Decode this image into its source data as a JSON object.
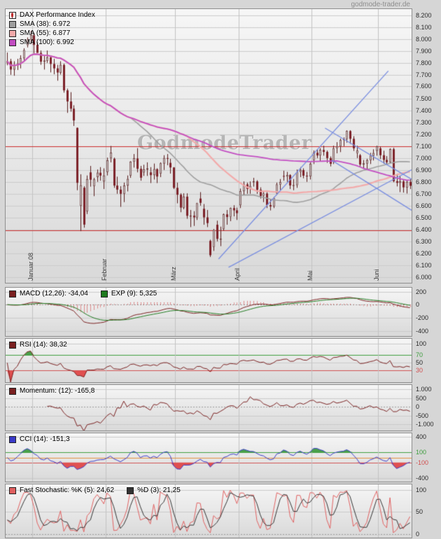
{
  "site": {
    "brand_watermark": "GodmodeTrader",
    "source_label": "godmode-trader.de"
  },
  "legends": {
    "main": [
      {
        "label": "DAX Performance Index"
      },
      {
        "label": "SMA (38): 6.972",
        "swatch": "#9f9f9f"
      },
      {
        "label": "SMA (55): 6.877",
        "swatch": "#f2aaaa"
      },
      {
        "label": "SMA (100): 6.992",
        "swatch": "#c24ec2"
      }
    ],
    "macd": [
      {
        "label": "MACD (12,26): -34,04",
        "swatch": "#7a2020"
      },
      {
        "label": "EXP (9): 5,325",
        "swatch": "#1f7a1f"
      }
    ],
    "rsi": [
      {
        "label": "RSI (14): 38,32",
        "swatch": "#7a2020"
      }
    ],
    "momentum": [
      {
        "label": "Momentum: (12): -165,8",
        "swatch": "#7a2020"
      }
    ],
    "cci": [
      {
        "label": "CCI (14): -151,3",
        "swatch": "#3a3ac8"
      }
    ],
    "stochastic": [
      {
        "label": "Fast Stochastic: %K (5): 24,62",
        "swatch": "#e06060"
      },
      {
        "label": "%D (3): 21,25",
        "swatch": "#333333"
      }
    ]
  },
  "chart_data": [
    {
      "type": "candlestick",
      "title": "DAX Performance Index",
      "ylim": [
        5950,
        8250
      ],
      "y_axis": {
        "min": 6000,
        "max": 8200,
        "step": 100
      },
      "x_months": [
        {
          "label": "Januar 08",
          "index": 8
        },
        {
          "label": "Februar",
          "index": 30
        },
        {
          "label": "März",
          "index": 51
        },
        {
          "label": "April",
          "index": 70
        },
        {
          "label": "Mai",
          "index": 92
        },
        {
          "label": "Juni",
          "index": 112
        }
      ],
      "series": {
        "candles": [
          [
            7800,
            7885,
            7778,
            7812
          ],
          [
            7812,
            7832,
            7698,
            7742
          ],
          [
            7742,
            7812,
            7690,
            7776
          ],
          [
            7776,
            7832,
            7738,
            7791
          ],
          [
            7791,
            7862,
            7752,
            7837
          ],
          [
            7837,
            7921,
            7820,
            7905
          ],
          [
            7948,
            8012,
            7928,
            7994
          ],
          [
            7994,
            8068,
            7958,
            8030
          ],
          [
            8030,
            8050,
            7868,
            7949
          ],
          [
            7949,
            7972,
            7898,
            7882
          ],
          [
            7882,
            7902,
            7782,
            7808
          ],
          [
            7808,
            7862,
            7742,
            7817
          ],
          [
            7817,
            7902,
            7798,
            7845
          ],
          [
            7845,
            7862,
            7718,
            7789
          ],
          [
            7789,
            7832,
            7702,
            7752
          ],
          [
            7752,
            7782,
            7648,
            7717
          ],
          [
            7717,
            7812,
            7700,
            7781
          ],
          [
            7781,
            7792,
            7548,
            7567
          ],
          [
            7567,
            7582,
            7378,
            7474
          ],
          [
            7474,
            7552,
            7388,
            7413
          ],
          [
            7413,
            7442,
            7268,
            7314
          ],
          [
            7252,
            7255,
            6728,
            6790
          ],
          [
            6598,
            6862,
            6384,
            6769
          ],
          [
            6749,
            6762,
            6413,
            6439
          ],
          [
            6552,
            6852,
            6528,
            6821
          ],
          [
            6878,
            6932,
            6758,
            6816
          ],
          [
            6762,
            6832,
            6678,
            6818
          ],
          [
            6838,
            6902,
            6798,
            6875
          ],
          [
            6875,
            6922,
            6808,
            6851
          ],
          [
            6802,
            6912,
            6738,
            6851
          ],
          [
            6882,
            7002,
            6852,
            6979
          ],
          [
            7000,
            7100,
            6962,
            7043
          ],
          [
            6992,
            7002,
            6748,
            6767
          ],
          [
            6767,
            6842,
            6698,
            6733
          ],
          [
            6733,
            6762,
            6588,
            6698
          ],
          [
            6698,
            6792,
            6628,
            6767
          ],
          [
            6767,
            6852,
            6718,
            6822
          ],
          [
            6852,
            6972,
            6832,
            6968
          ],
          [
            6968,
            7032,
            6918,
            6995
          ],
          [
            6995,
            7082,
            6878,
            6908
          ],
          [
            6908,
            6932,
            6808,
            6833
          ],
          [
            6878,
            6942,
            6848,
            6903
          ],
          [
            6903,
            6962,
            6848,
            6910
          ],
          [
            6878,
            6922,
            6788,
            6855
          ],
          [
            6855,
            6952,
            6818,
            6905
          ],
          [
            6905,
            6912,
            6788,
            6843
          ],
          [
            6868,
            6962,
            6838,
            6953
          ],
          [
            6953,
            7022,
            6898,
            6998
          ],
          [
            6998,
            7032,
            6938,
            6997
          ],
          [
            6958,
            6992,
            6868,
            6919
          ],
          [
            6919,
            6922,
            6738,
            6748
          ],
          [
            6748,
            6792,
            6618,
            6690
          ],
          [
            6690,
            6702,
            6543,
            6582
          ],
          [
            6582,
            6702,
            6568,
            6674
          ],
          [
            6674,
            6702,
            6488,
            6513
          ],
          [
            6513,
            6562,
            6418,
            6514
          ],
          [
            6514,
            6552,
            6428,
            6500
          ],
          [
            6500,
            6622,
            6478,
            6618
          ],
          [
            6658,
            6712,
            6598,
            6622
          ],
          [
            6572,
            6612,
            6438,
            6500
          ],
          [
            6500,
            6562,
            6418,
            6452
          ],
          [
            6302,
            6312,
            6167,
            6182
          ],
          [
            6252,
            6402,
            6218,
            6393
          ],
          [
            6438,
            6472,
            6298,
            6319
          ],
          [
            6319,
            6422,
            6258,
            6320
          ],
          [
            6402,
            6532,
            6388,
            6525
          ],
          [
            6525,
            6562,
            6438,
            6503
          ],
          [
            6503,
            6582,
            6468,
            6578
          ],
          [
            6578,
            6602,
            6508,
            6559
          ],
          [
            6559,
            6582,
            6478,
            6535
          ],
          [
            6602,
            6742,
            6578,
            6720
          ],
          [
            6720,
            6802,
            6688,
            6777
          ],
          [
            6777,
            6792,
            6698,
            6739
          ],
          [
            6739,
            6802,
            6698,
            6763
          ],
          [
            6800,
            6832,
            6758,
            6802
          ],
          [
            6802,
            6812,
            6698,
            6732
          ],
          [
            6732,
            6752,
            6658,
            6680
          ],
          [
            6680,
            6722,
            6628,
            6700
          ],
          [
            6700,
            6712,
            6578,
            6603
          ],
          [
            6603,
            6652,
            6558,
            6591
          ],
          [
            6591,
            6672,
            6578,
            6662
          ],
          [
            6702,
            6792,
            6688,
            6776
          ],
          [
            6776,
            6822,
            6728,
            6795
          ],
          [
            6848,
            6892,
            6808,
            6843
          ],
          [
            6843,
            6882,
            6798,
            6855
          ],
          [
            6855,
            6862,
            6738,
            6768
          ],
          [
            6768,
            6822,
            6728,
            6771
          ],
          [
            6771,
            6902,
            6748,
            6880
          ],
          [
            6880,
            6922,
            6838,
            6897
          ],
          [
            6897,
            6912,
            6828,
            6850
          ],
          [
            6850,
            6882,
            6798,
            6844
          ],
          [
            6844,
            6962,
            6818,
            6948
          ],
          [
            6982,
            7062,
            6948,
            7043
          ],
          [
            7043,
            7072,
            6998,
            7020
          ],
          [
            7020,
            7082,
            6968,
            7066
          ],
          [
            7066,
            7102,
            7018,
            7050
          ],
          [
            7050,
            7062,
            6958,
            6998
          ],
          [
            6998,
            7012,
            6928,
            6950
          ],
          [
            6972,
            7102,
            6948,
            7080
          ],
          [
            7080,
            7132,
            7038,
            7096
          ],
          [
            7096,
            7162,
            7048,
            7150
          ],
          [
            7150,
            7172,
            7098,
            7157
          ],
          [
            7157,
            7231,
            7128,
            7225
          ],
          [
            7225,
            7232,
            7118,
            7160
          ],
          [
            7160,
            7182,
            7058,
            7080
          ],
          [
            7040,
            7102,
            6998,
            7060
          ],
          [
            7022,
            7032,
            6928,
            6944
          ],
          [
            6944,
            6982,
            6908,
            6953
          ],
          [
            6953,
            6992,
            6908,
            6980
          ],
          [
            6980,
            7042,
            6948,
            7018
          ],
          [
            7018,
            7072,
            6978,
            7040
          ],
          [
            7060,
            7102,
            7018,
            7096
          ],
          [
            7080,
            7095,
            6990,
            7022
          ],
          [
            7022,
            7060,
            6950,
            6983
          ],
          [
            6983,
            7015,
            6940,
            6963
          ],
          [
            6963,
            7080,
            6955,
            7073
          ],
          [
            7073,
            7085,
            6795,
            6804
          ],
          [
            6804,
            6865,
            6760,
            6790
          ],
          [
            6790,
            6845,
            6712,
            6802
          ],
          [
            6802,
            6815,
            6708,
            6752
          ],
          [
            6752,
            6812,
            6700,
            6798
          ],
          [
            6798,
            6822,
            6738,
            6765
          ]
        ]
      },
      "overlays": {
        "sma": [
          {
            "name": "SMA 38",
            "period": 38,
            "color": "#9f9f9f",
            "width": 1.6
          },
          {
            "name": "SMA 55",
            "period": 55,
            "color": "#f2aaaa",
            "width": 2.2
          },
          {
            "name": "SMA 100",
            "period": 100,
            "color": "#c24ec2",
            "width": 1.8
          }
        ],
        "hlines": [
          {
            "value": 7100,
            "color": "#cc2b2b"
          },
          {
            "value": 6390,
            "color": "#cc2b2b"
          }
        ],
        "trendlines": [
          {
            "x1": 64,
            "y1": 6150,
            "x2": 115,
            "y2": 7730,
            "color": "#7b8fe0"
          },
          {
            "x1": 67,
            "y1": 6080,
            "x2": 122,
            "y2": 6900,
            "color": "#7b8fe0"
          },
          {
            "x1": 96,
            "y1": 7250,
            "x2": 122,
            "y2": 6820,
            "color": "#7b8fe0"
          },
          {
            "x1": 98,
            "y1": 6980,
            "x2": 122,
            "y2": 6560,
            "color": "#7b8fe0"
          }
        ]
      },
      "colors": {
        "up_fill": "#cfcfcf",
        "down_fill": "#7c2128",
        "outline": "#571a1a"
      }
    },
    {
      "type": "line",
      "title": "MACD (12,26): -34,04 / EXP (9): 5,325",
      "name": "MACD",
      "ylim": [
        -480,
        260
      ],
      "ticks": [
        {
          "v": 200,
          "l": "200"
        },
        {
          "v": 0,
          "l": "0"
        },
        {
          "v": -200,
          "l": "-200"
        },
        {
          "v": -400,
          "l": "-400"
        }
      ],
      "colors": {
        "macd": "#7a2020",
        "signal": "#1f7a1f",
        "hist": "#cc3333"
      }
    },
    {
      "type": "line",
      "title": "RSI (14): 38,32",
      "name": "RSI",
      "ylim": [
        0,
        112
      ],
      "ticks": [
        {
          "v": 100,
          "l": "100"
        },
        {
          "v": 70,
          "l": "70",
          "c": "#3f9e3f"
        },
        {
          "v": 50,
          "l": "50"
        },
        {
          "v": 30,
          "l": "30",
          "c": "#d05050"
        }
      ],
      "thresholds": {
        "upper": 70,
        "lower": 30
      },
      "colors": {
        "line": "#7a2020",
        "above": "#4aa04a",
        "below": "#e05050"
      }
    },
    {
      "type": "line",
      "title": "Momentum: (12): -165,8",
      "name": "Momentum",
      "ylim": [
        -1350,
        1250
      ],
      "ticks": [
        1000,
        500,
        0,
        -500,
        -1000
      ],
      "colors": {
        "line": "#7a2020"
      }
    },
    {
      "type": "line",
      "title": "CCI (14): -151,3",
      "name": "CCI",
      "ylim": [
        -470,
        470
      ],
      "ticks": [
        {
          "v": 400,
          "l": "400"
        },
        {
          "v": 100,
          "l": "100",
          "c": "#3f9e3f"
        },
        {
          "v": -100,
          "l": "-100",
          "c": "#d05050"
        },
        {
          "v": -400,
          "l": "-400"
        }
      ],
      "thresholds": {
        "upper": 100,
        "lower": -100
      },
      "zero_color": "#e09040",
      "colors": {
        "line": "#3a3ac8",
        "above": "#4aa04a",
        "below": "#e05050"
      }
    },
    {
      "type": "line",
      "title": "Fast Stochastic: %K (5): 24,62 / %D (3): 21,25",
      "name": "Fast Stochastic",
      "ylim": [
        -8,
        112
      ],
      "ticks": [
        100,
        50,
        0
      ],
      "colors": {
        "k": "#e06060",
        "d": "#333333"
      }
    }
  ]
}
